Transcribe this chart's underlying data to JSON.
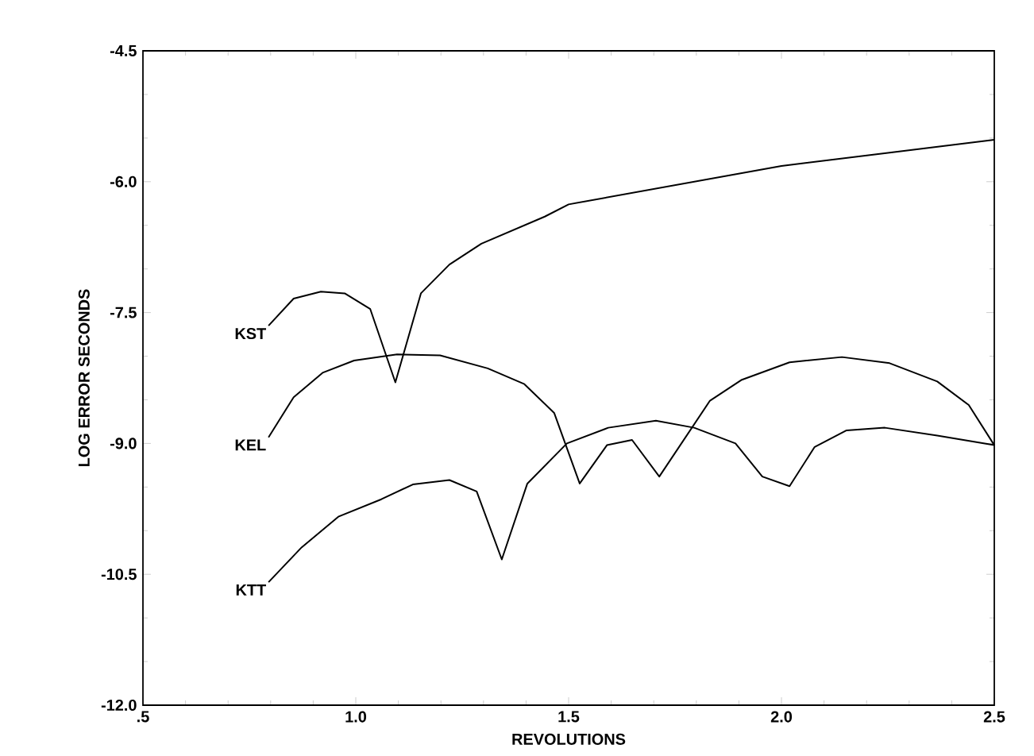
{
  "chart_data": {
    "type": "line",
    "xlabel": "REVOLUTIONS",
    "ylabel": "LOG ERROR SECONDS",
    "xlim": [
      0.5,
      2.5
    ],
    "ylim": [
      -12.0,
      -4.5
    ],
    "xticks": [
      {
        "value": 0.5,
        "label": ".5"
      },
      {
        "value": 1.0,
        "label": "1.0"
      },
      {
        "value": 1.5,
        "label": "1.5"
      },
      {
        "value": 2.0,
        "label": "2.0"
      },
      {
        "value": 2.5,
        "label": "2.5"
      }
    ],
    "yticks": [
      {
        "value": -12.0,
        "label": "-12.0"
      },
      {
        "value": -10.5,
        "label": "-10.5"
      },
      {
        "value": -9.0,
        "label": "-9.0"
      },
      {
        "value": -7.5,
        "label": "-7.5"
      },
      {
        "value": -6.0,
        "label": "-6.0"
      },
      {
        "value": -4.5,
        "label": "-4.5"
      }
    ],
    "grid": false,
    "legend": false,
    "marker": "none",
    "line_style": "solid",
    "series": [
      {
        "name": "KST",
        "color": "#000000",
        "x": [
          0.795,
          0.854,
          0.918,
          0.974,
          1.034,
          1.093,
          1.153,
          1.22,
          1.295,
          1.444,
          1.5,
          1.75,
          2.0,
          2.25,
          2.5
        ],
        "values": [
          -7.65,
          -7.34,
          -7.26,
          -7.28,
          -7.46,
          -8.3,
          -7.28,
          -6.95,
          -6.71,
          -6.4,
          -6.26,
          -6.04,
          -5.82,
          -5.67,
          -5.52
        ]
      },
      {
        "name": "KEL",
        "color": "#000000",
        "x": [
          0.795,
          0.854,
          0.922,
          0.996,
          1.097,
          1.198,
          1.31,
          1.396,
          1.466,
          1.526,
          1.59,
          1.649,
          1.713,
          1.832,
          1.907,
          2.019,
          2.142,
          2.254,
          2.366,
          2.44,
          2.5
        ],
        "values": [
          -8.93,
          -8.47,
          -8.19,
          -8.05,
          -7.98,
          -7.99,
          -8.14,
          -8.32,
          -8.65,
          -9.46,
          -9.02,
          -8.96,
          -9.38,
          -8.51,
          -8.27,
          -8.07,
          -8.01,
          -8.08,
          -8.29,
          -8.56,
          -9.02
        ]
      },
      {
        "name": "KTT",
        "color": "#000000",
        "x": [
          0.795,
          0.873,
          0.959,
          1.06,
          1.134,
          1.22,
          1.284,
          1.343,
          1.403,
          1.496,
          1.593,
          1.705,
          1.795,
          1.892,
          1.955,
          2.019,
          2.078,
          2.153,
          2.243,
          2.366,
          2.5
        ],
        "values": [
          -10.59,
          -10.19,
          -9.84,
          -9.64,
          -9.47,
          -9.42,
          -9.55,
          -10.33,
          -9.46,
          -9.0,
          -8.82,
          -8.74,
          -8.82,
          -9.0,
          -9.38,
          -9.49,
          -9.04,
          -8.85,
          -8.82,
          -8.91,
          -9.02
        ]
      }
    ]
  }
}
